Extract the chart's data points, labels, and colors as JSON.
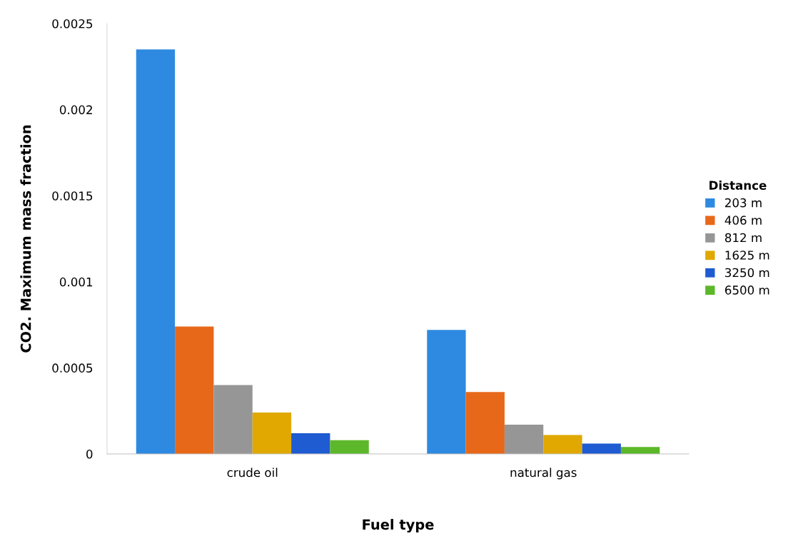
{
  "chart_data": {
    "type": "bar",
    "xlabel": "Fuel type",
    "ylabel": "CO2. Maximum mass fraction",
    "legend_title": "Distance",
    "categories": [
      "crude oil",
      "natural gas"
    ],
    "series": [
      {
        "name": "203 m",
        "color": "#2e8ae0",
        "values": [
          0.00235,
          0.00072
        ]
      },
      {
        "name": "406 m",
        "color": "#e8681a",
        "values": [
          0.00074,
          0.00036
        ]
      },
      {
        "name": "812 m",
        "color": "#969696",
        "values": [
          0.0004,
          0.00017
        ]
      },
      {
        "name": "1625 m",
        "color": "#e0a800",
        "values": [
          0.00024,
          0.00011
        ]
      },
      {
        "name": "3250 m",
        "color": "#1f5bd1",
        "values": [
          0.00012,
          6e-05
        ]
      },
      {
        "name": "6500 m",
        "color": "#5cb82a",
        "values": [
          8e-05,
          4e-05
        ]
      }
    ],
    "ylim": [
      0,
      0.0025
    ],
    "yticks": [
      0,
      0.0005,
      0.001,
      0.0015,
      0.002,
      0.0025
    ],
    "grid": false,
    "legend": "right"
  }
}
